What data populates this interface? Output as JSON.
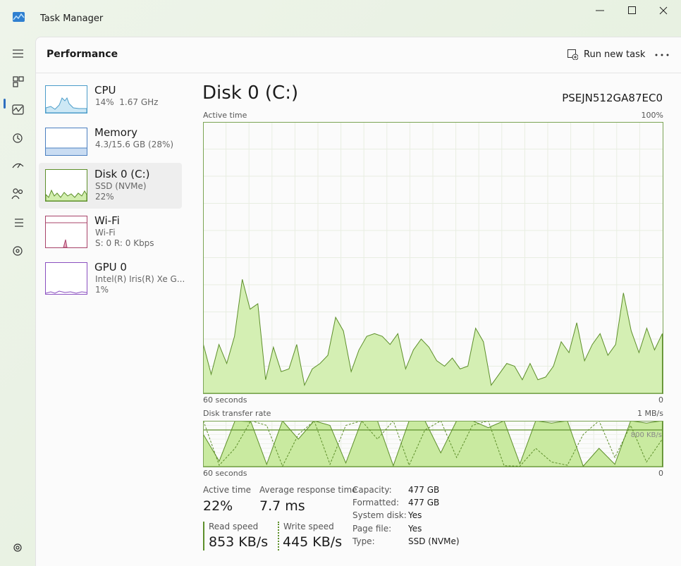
{
  "window": {
    "title": "Task Manager"
  },
  "header": {
    "title": "Performance",
    "run_new_task": "Run new task"
  },
  "sidebar": [
    {
      "name": "CPU",
      "lines": [
        "14%  1.67 GHz"
      ]
    },
    {
      "name": "Memory",
      "lines": [
        "4.3/15.6 GB (28%)"
      ]
    },
    {
      "name": "Disk 0 (C:)",
      "lines": [
        "SSD (NVMe)",
        "22%"
      ]
    },
    {
      "name": "Wi-Fi",
      "lines": [
        "Wi-Fi",
        "S: 0 R: 0 Kbps"
      ]
    },
    {
      "name": "GPU 0",
      "lines": [
        "Intel(R) Iris(R) Xe G...",
        "1%"
      ]
    }
  ],
  "detail": {
    "title": "Disk 0 (C:)",
    "model": "PSEJN512GA87EC0",
    "active_time_graph": {
      "label": "Active time",
      "top_label": "100%",
      "x_left_label": "60 seconds",
      "x_right_label": "0",
      "ylim": [
        0,
        100
      ],
      "values": [
        18,
        7,
        18,
        11,
        21,
        42,
        31,
        33,
        5,
        17,
        8,
        9,
        18,
        3,
        9,
        11,
        14,
        28,
        23,
        8,
        16,
        21,
        22,
        21,
        18,
        22,
        9,
        16,
        20,
        17,
        12,
        10,
        13,
        9,
        10,
        24,
        19,
        3,
        7,
        11,
        10,
        5,
        11,
        5,
        6,
        10,
        19,
        15,
        26,
        12,
        18,
        22,
        14,
        18,
        37,
        23,
        15,
        24,
        16,
        22
      ]
    },
    "transfer_graph": {
      "label": "Disk transfer rate",
      "top_label": "1 MB/s",
      "mid_label": "800 KB/s",
      "mid_value": 800,
      "x_left_label": "60 seconds",
      "x_right_label": "0",
      "ylim": [
        0,
        1000
      ],
      "read_values": [
        700,
        120,
        1000,
        980,
        50,
        1000,
        600,
        1000,
        900,
        80,
        1000,
        1000,
        20,
        1000,
        1000,
        300,
        1000,
        1000,
        850,
        1000,
        60,
        1000,
        950,
        1000,
        10,
        400,
        50,
        1000,
        950,
        1000
      ],
      "write_values": [
        1000,
        30,
        400,
        1000,
        900,
        10,
        700,
        1000,
        50,
        900,
        1000,
        600,
        1000,
        30,
        800,
        1000,
        200,
        900,
        1000,
        20,
        10,
        400,
        100,
        30,
        700,
        1000,
        200,
        900,
        100,
        600
      ]
    },
    "stats": [
      {
        "label": "Active time",
        "value": "22%"
      },
      {
        "label": "Average response time",
        "value": "7.7 ms"
      }
    ],
    "speeds": [
      {
        "label": "Read speed",
        "value": "853 KB/s"
      },
      {
        "label": "Write speed",
        "value": "445 KB/s"
      }
    ],
    "properties": [
      [
        "Capacity:",
        "477 GB"
      ],
      [
        "Formatted:",
        "477 GB"
      ],
      [
        "System disk:",
        "Yes"
      ],
      [
        "Page file:",
        "Yes"
      ],
      [
        "Type:",
        "SSD (NVMe)"
      ]
    ]
  }
}
